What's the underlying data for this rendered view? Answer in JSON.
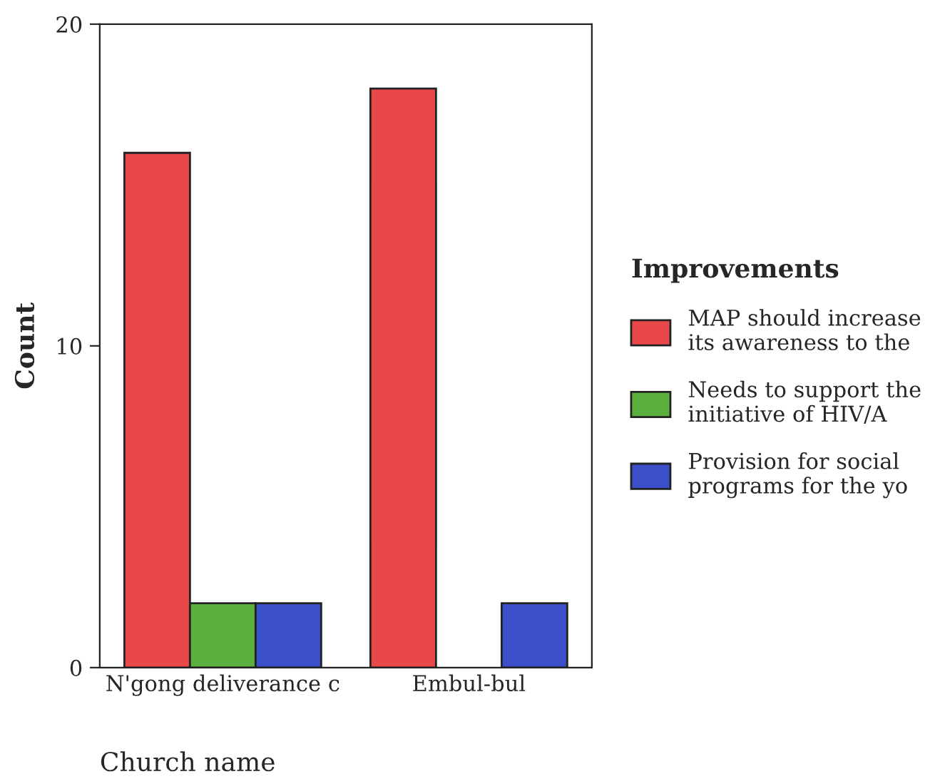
{
  "chart_data": {
    "type": "bar",
    "xlabel": "Church name",
    "ylabel": "Count",
    "legend_title": "Improvements",
    "categories": [
      "N'gong deliverance c",
      "Embul-bul"
    ],
    "series": [
      {
        "name": "MAP should increase\nits awareness to the",
        "color": "#e8484a",
        "values": [
          16,
          18
        ]
      },
      {
        "name": "Needs to support the\ninitiative of HIV/A",
        "color": "#5cb040",
        "values": [
          2,
          null
        ]
      },
      {
        "name": "Provision for social\nprograms for the yo",
        "color": "#3a4fc8",
        "values": [
          2,
          2
        ]
      }
    ],
    "ylim": [
      0,
      20
    ],
    "yticks": [
      0,
      10,
      20
    ],
    "grid": false,
    "legend": "right"
  }
}
